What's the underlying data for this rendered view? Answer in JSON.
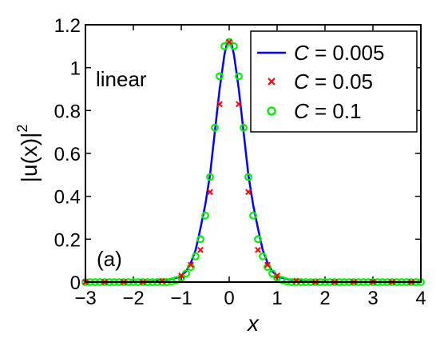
{
  "chart_data": {
    "type": "line",
    "xlabel": "x",
    "ylabel_core": "|u(x)|",
    "ylabel_sup": "2",
    "xlim": [
      -3,
      4
    ],
    "ylim": [
      0,
      1.2
    ],
    "xticks": [
      -3,
      -2,
      -1,
      0,
      1,
      2,
      3,
      4
    ],
    "xtick_labels": [
      "−3",
      "−2",
      "−1",
      "0",
      "1",
      "2",
      "3",
      "4"
    ],
    "yticks": [
      0,
      0.2,
      0.4,
      0.6,
      0.8,
      1,
      1.2
    ],
    "ytick_labels": [
      "0",
      "0.2",
      "0.4",
      "0.6",
      "0.8",
      "1",
      "1.2"
    ],
    "grid": false,
    "legend_position": "top-right",
    "annotations": [
      {
        "text": "linear"
      },
      {
        "text": "(a)"
      }
    ],
    "series": [
      {
        "name_var": "C",
        "name_rest": " = 0.005",
        "style": "line",
        "color": "#0000ff",
        "x": [
          -3.0,
          -2.5,
          -2.0,
          -1.6,
          -1.3,
          -1.1,
          -1.0,
          -0.9,
          -0.8,
          -0.7,
          -0.6,
          -0.5,
          -0.4,
          -0.3,
          -0.2,
          -0.1,
          -0.05,
          0.0,
          0.05,
          0.1,
          0.2,
          0.3,
          0.4,
          0.5,
          0.6,
          0.7,
          0.8,
          0.9,
          1.0,
          1.1,
          1.3,
          1.6,
          2.0,
          2.5,
          3.0,
          3.5,
          4.0
        ],
        "y": [
          0.0,
          0.0,
          0.0,
          0.003,
          0.01,
          0.02,
          0.03,
          0.05,
          0.09,
          0.15,
          0.25,
          0.36,
          0.5,
          0.7,
          0.9,
          1.06,
          1.11,
          1.12,
          1.11,
          1.06,
          0.9,
          0.7,
          0.5,
          0.36,
          0.25,
          0.15,
          0.09,
          0.05,
          0.03,
          0.02,
          0.01,
          0.003,
          0.0,
          0.0,
          0.0,
          0.0,
          0.0
        ]
      },
      {
        "name_var": "C",
        "name_rest": " = 0.05",
        "style": "x-marker",
        "color": "#ff0000",
        "x": [
          -3.0,
          -2.6,
          -2.2,
          -1.8,
          -1.4,
          -1.0,
          -0.8,
          -0.6,
          -0.4,
          -0.2,
          0.0,
          0.2,
          0.4,
          0.6,
          0.8,
          1.0,
          1.4,
          1.8,
          2.2,
          2.6,
          3.0,
          3.4,
          3.8
        ],
        "y": [
          0.0,
          0.0,
          0.0,
          0.0,
          0.005,
          0.03,
          0.08,
          0.15,
          0.42,
          0.83,
          1.12,
          0.83,
          0.42,
          0.15,
          0.08,
          0.03,
          0.005,
          0.0,
          0.0,
          0.0,
          0.0,
          0.0,
          0.0
        ]
      },
      {
        "name_var": "C",
        "name_rest": " = 0.1",
        "style": "o-marker",
        "color": "#00ee00",
        "x": [
          -3.0,
          -2.9,
          -2.8,
          -2.7,
          -2.6,
          -2.5,
          -2.4,
          -2.3,
          -2.2,
          -2.1,
          -2.0,
          -1.9,
          -1.8,
          -1.7,
          -1.6,
          -1.5,
          -1.4,
          -1.3,
          -1.2,
          -1.1,
          -1.0,
          -0.9,
          -0.8,
          -0.7,
          -0.6,
          -0.5,
          -0.4,
          -0.3,
          -0.2,
          -0.1,
          0.0,
          0.1,
          0.2,
          0.3,
          0.4,
          0.5,
          0.6,
          0.7,
          0.8,
          0.9,
          1.0,
          1.1,
          1.2,
          1.3,
          1.4,
          1.5,
          1.6,
          1.7,
          1.8,
          1.9,
          2.0,
          2.1,
          2.2,
          2.3,
          2.4,
          2.5,
          2.6,
          2.7,
          2.8,
          2.9,
          3.0,
          3.1,
          3.2,
          3.3,
          3.4,
          3.5,
          3.6,
          3.7,
          3.8,
          3.9,
          4.0
        ],
        "y": [
          0.0,
          0.0,
          0.0,
          0.0,
          0.0,
          0.0,
          0.0,
          0.0,
          0.0,
          0.0,
          0.0,
          0.0,
          0.0,
          0.0,
          0.0,
          0.0,
          0.0,
          0.0,
          0.003,
          0.01,
          0.02,
          0.04,
          0.07,
          0.12,
          0.2,
          0.31,
          0.49,
          0.72,
          0.96,
          1.1,
          1.12,
          1.1,
          0.96,
          0.72,
          0.49,
          0.31,
          0.2,
          0.12,
          0.07,
          0.04,
          0.02,
          0.01,
          0.003,
          0.0,
          0.0,
          0.0,
          0.0,
          0.0,
          0.0,
          0.0,
          0.0,
          0.0,
          0.0,
          0.0,
          0.0,
          0.0,
          0.0,
          0.0,
          0.0,
          0.0,
          0.0,
          0.0,
          0.0,
          0.0,
          0.0,
          0.0,
          0.0,
          0.0,
          0.0,
          0.0,
          0.0
        ]
      }
    ]
  }
}
